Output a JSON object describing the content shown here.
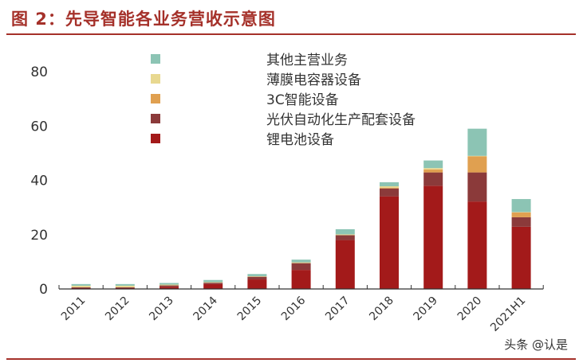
{
  "title": "图 2：先导智能各业务营收示意图",
  "watermark": "头条 @认是",
  "chart_data": {
    "type": "bar",
    "stacked": true,
    "categories": [
      "2011",
      "2012",
      "2013",
      "2014",
      "2015",
      "2016",
      "2017",
      "2018",
      "2019",
      "2020",
      "2021H1"
    ],
    "ylim": [
      0,
      80
    ],
    "yticks": [
      0,
      20,
      40,
      60,
      80
    ],
    "grid": false,
    "legend": "top-center",
    "series": [
      {
        "name": "锂电池设备",
        "color": "#a31a1a",
        "values": [
          0.3,
          0.3,
          0.8,
          1.8,
          3.5,
          7,
          18,
          34.1,
          38,
          32.2,
          22.9
        ]
      },
      {
        "name": "光伏自动化生产配套设备",
        "color": "#8b3a3a",
        "values": [
          0.3,
          0.3,
          0.5,
          0.5,
          1,
          2.5,
          1.8,
          2.9,
          4.9,
          10.7,
          3.5
        ]
      },
      {
        "name": "3C智能设备",
        "color": "#e0a050",
        "values": [
          0,
          0,
          0,
          0,
          0,
          0,
          0,
          0.3,
          1.1,
          5.9,
          1.8
        ]
      },
      {
        "name": "薄膜电容器设备",
        "color": "#e8d890",
        "values": [
          0.6,
          0.6,
          0.3,
          0.2,
          0.2,
          0.3,
          0.3,
          0.5,
          0.5,
          0.2,
          0.1
        ]
      },
      {
        "name": "其他主营业务",
        "color": "#8cc4b4",
        "values": [
          0.6,
          0.6,
          0.6,
          0.8,
          0.8,
          1,
          1.9,
          1.5,
          2.8,
          10,
          4.8
        ]
      }
    ]
  }
}
